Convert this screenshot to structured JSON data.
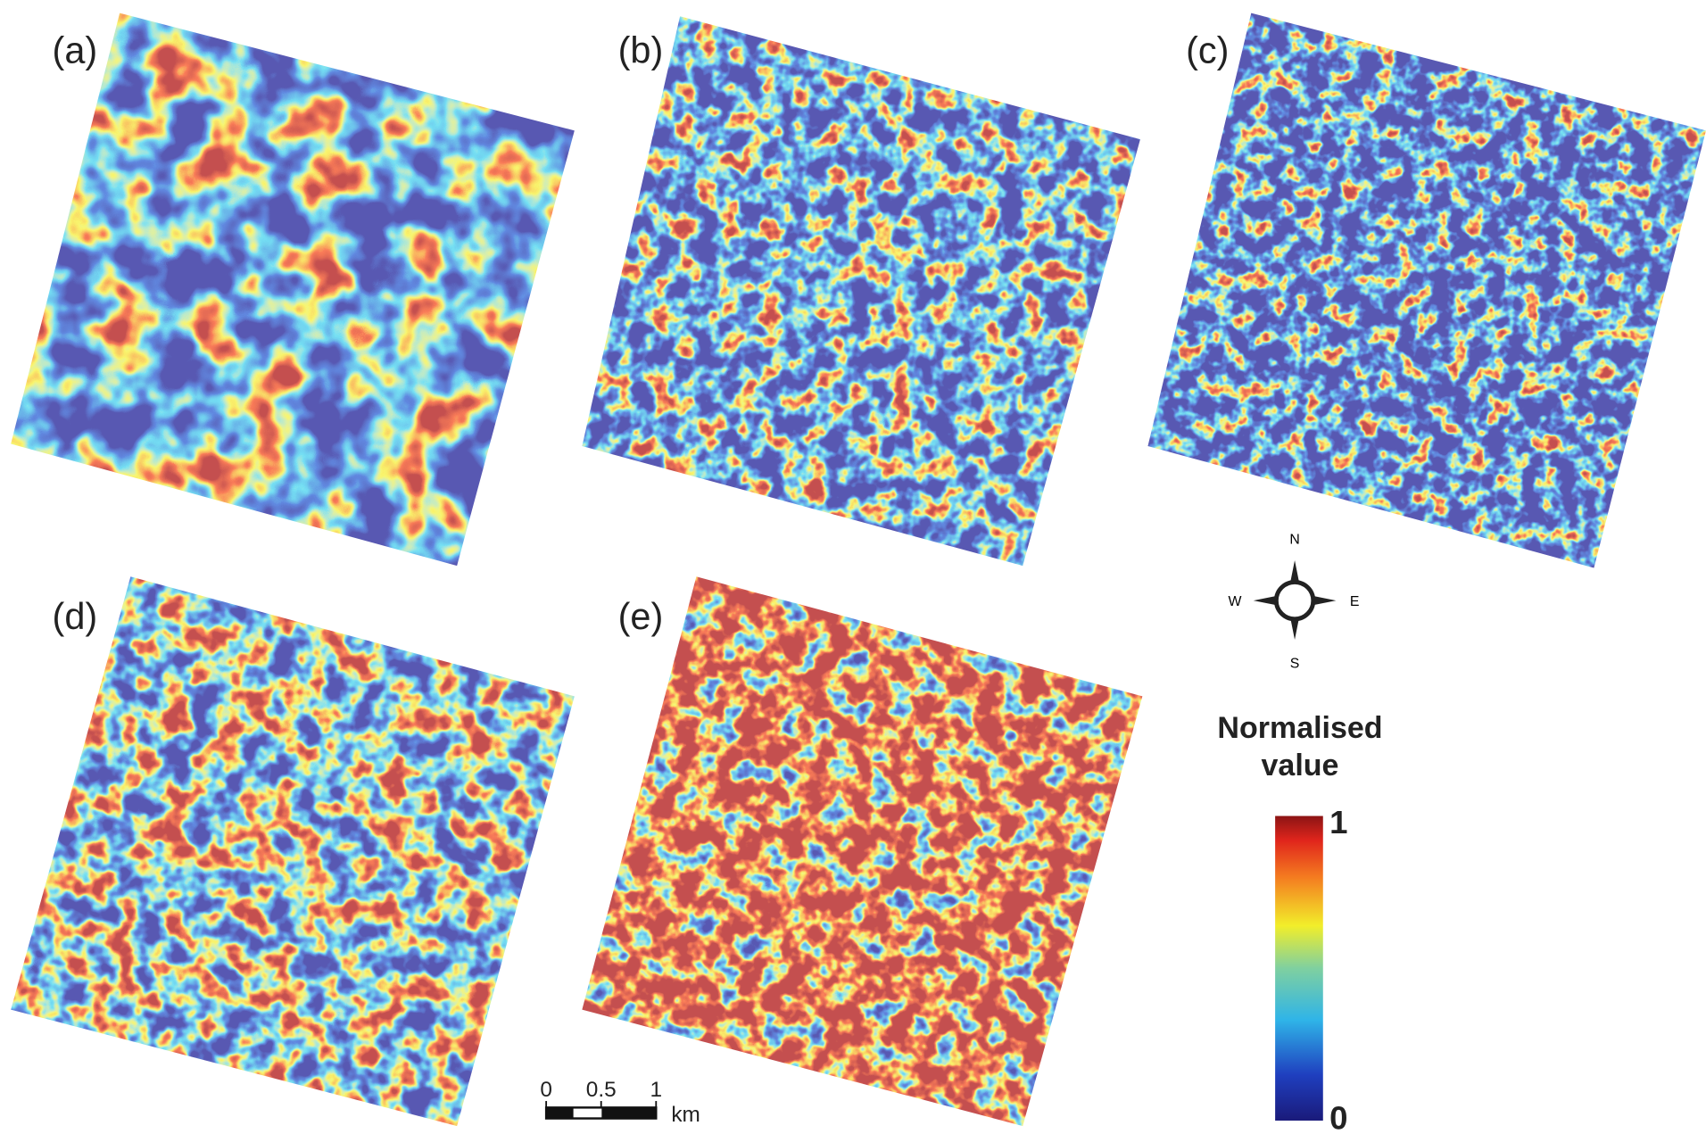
{
  "panels": [
    {
      "label": "(a)"
    },
    {
      "label": "(b)"
    },
    {
      "label": "(c)"
    },
    {
      "label": "(d)"
    },
    {
      "label": "(e)"
    }
  ],
  "compass": {
    "north": "N",
    "south": "S",
    "west": "W",
    "east": "E"
  },
  "legend": {
    "title": "Normalised value",
    "max": 1,
    "min": 0
  },
  "scale_bar": {
    "ticks": [
      0,
      0.5,
      1
    ],
    "unit": "km"
  }
}
